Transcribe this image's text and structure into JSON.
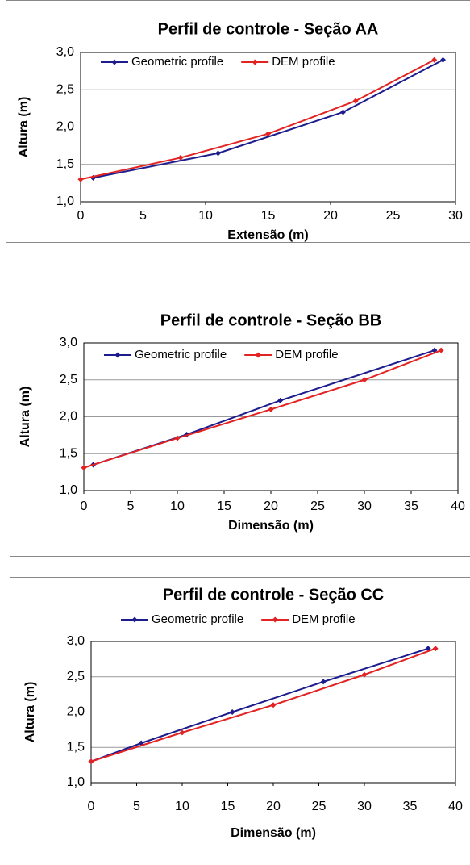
{
  "chart_data": [
    {
      "type": "line",
      "title": "Perfil de controle - Seção AA",
      "xlabel": "Extensão (m)",
      "ylabel": "Altura (m)",
      "xlim": [
        0,
        30
      ],
      "xticks": [
        0,
        5,
        10,
        15,
        20,
        25,
        30
      ],
      "ylim": [
        1,
        3
      ],
      "yticks": [
        {
          "value": 1,
          "label": "1,0"
        },
        {
          "value": 1.5,
          "label": "1,5"
        },
        {
          "value": 2,
          "label": "2,0"
        },
        {
          "value": 2.5,
          "label": "2,5"
        },
        {
          "value": 3,
          "label": "3,0"
        }
      ],
      "grid": true,
      "legend": "top-left",
      "series": [
        {
          "name": "Geometric profile",
          "color": "#1c1c8e",
          "x": [
            1,
            11,
            21,
            29
          ],
          "values": [
            1.32,
            1.65,
            2.2,
            2.9
          ]
        },
        {
          "name": "DEM profile",
          "color": "#e32222",
          "x": [
            0,
            8,
            15,
            22,
            28.3
          ],
          "values": [
            1.3,
            1.59,
            1.91,
            2.35,
            2.9
          ]
        }
      ]
    },
    {
      "type": "line",
      "title": "Perfil de controle - Seção BB",
      "xlabel": "Dimensão (m)",
      "ylabel": "Altura (m)",
      "xlim": [
        0,
        40
      ],
      "xticks": [
        0,
        5,
        10,
        15,
        20,
        25,
        30,
        35,
        40
      ],
      "ylim": [
        1,
        3
      ],
      "yticks": [
        {
          "value": 1,
          "label": "1,0"
        },
        {
          "value": 1.5,
          "label": "1,5"
        },
        {
          "value": 2,
          "label": "2,0"
        },
        {
          "value": 2.5,
          "label": "2,5"
        },
        {
          "value": 3,
          "label": "3,0"
        }
      ],
      "grid": true,
      "legend": "top-left",
      "series": [
        {
          "name": "Geometric profile",
          "color": "#1c1c8e",
          "x": [
            1,
            11,
            21,
            37.5
          ],
          "values": [
            1.35,
            1.76,
            2.22,
            2.9
          ]
        },
        {
          "name": "DEM profile",
          "color": "#e32222",
          "x": [
            0,
            10,
            20,
            30,
            38.2
          ],
          "values": [
            1.31,
            1.71,
            2.1,
            2.5,
            2.9
          ]
        }
      ]
    },
    {
      "type": "line",
      "title": "Perfil de controle - Seção CC",
      "xlabel": "Dimensão (m)",
      "ylabel": "Altura (m)",
      "xlim": [
        0,
        40
      ],
      "xticks": [
        0,
        5,
        10,
        15,
        20,
        25,
        30,
        35,
        40
      ],
      "ylim": [
        1,
        3
      ],
      "yticks": [
        {
          "value": 1,
          "label": "1,0"
        },
        {
          "value": 1.5,
          "label": "1,5"
        },
        {
          "value": 2,
          "label": "2,0"
        },
        {
          "value": 2.5,
          "label": "2,5"
        },
        {
          "value": 3,
          "label": "3,0"
        }
      ],
      "grid": true,
      "legend": "top",
      "series": [
        {
          "name": "Geometric profile",
          "color": "#1c1c8e",
          "x": [
            0,
            5.5,
            15.5,
            25.5,
            37
          ],
          "values": [
            1.3,
            1.56,
            2.0,
            2.43,
            2.9
          ]
        },
        {
          "name": "DEM profile",
          "color": "#e32222",
          "x": [
            0,
            10,
            20,
            30,
            37.8
          ],
          "values": [
            1.3,
            1.71,
            2.1,
            2.53,
            2.9
          ]
        }
      ]
    }
  ]
}
